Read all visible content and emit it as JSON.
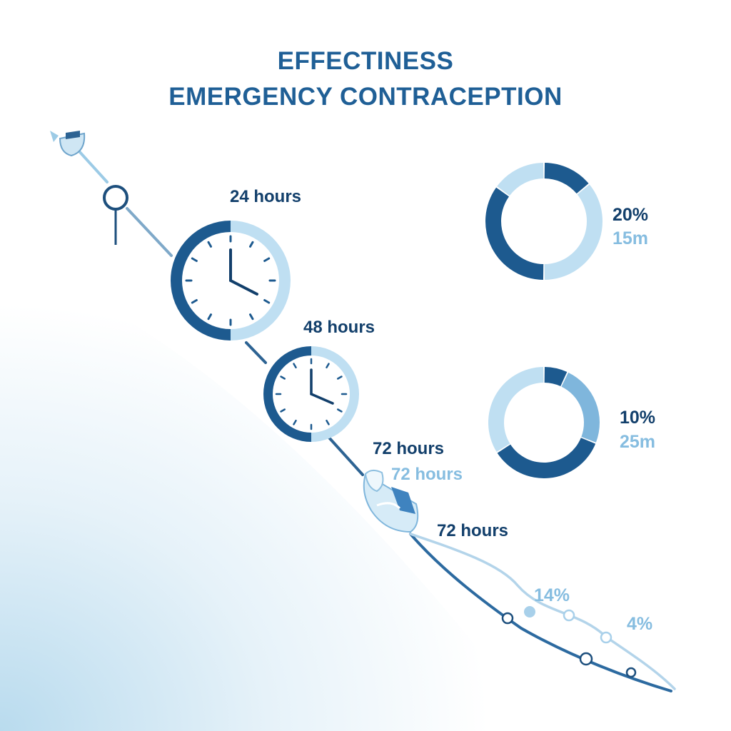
{
  "title": {
    "line1": "EFFECTINESS",
    "line2": "EMERGENCY CONTRACEPTION"
  },
  "timeline": {
    "labels": {
      "h24": "24 hours",
      "h48": "48 hours",
      "h72_a": "72 hours",
      "h72_b": "72 hours",
      "h72_c": "72 hours"
    },
    "tail_values": {
      "v14": "14%",
      "v4": "4%"
    }
  },
  "donuts": [
    {
      "percent_label": "20%",
      "time_label": "15m",
      "segments": [
        {
          "fraction": 0.14,
          "color": "#1d5a8f"
        },
        {
          "fraction": 0.36,
          "color": "#bfdff2"
        },
        {
          "fraction": 0.35,
          "color": "#1d5a8f"
        },
        {
          "fraction": 0.15,
          "color": "#bfdff2"
        }
      ]
    },
    {
      "percent_label": "10%",
      "time_label": "25m",
      "segments": [
        {
          "fraction": 0.07,
          "color": "#1d5a8f"
        },
        {
          "fraction": 0.24,
          "color": "#7fb6dc"
        },
        {
          "fraction": 0.35,
          "color": "#1d5a8f"
        },
        {
          "fraction": 0.34,
          "color": "#bfdff2"
        }
      ]
    }
  ],
  "colors": {
    "dark_blue": "#1d5a8f",
    "mid_blue": "#7fb6dc",
    "light_blue": "#bfdff2",
    "title_blue": "#1f5f96"
  },
  "icons": [
    "pill-cup-icon",
    "magnifier-pin-icon",
    "clock-icon",
    "hand-pill-icon"
  ]
}
